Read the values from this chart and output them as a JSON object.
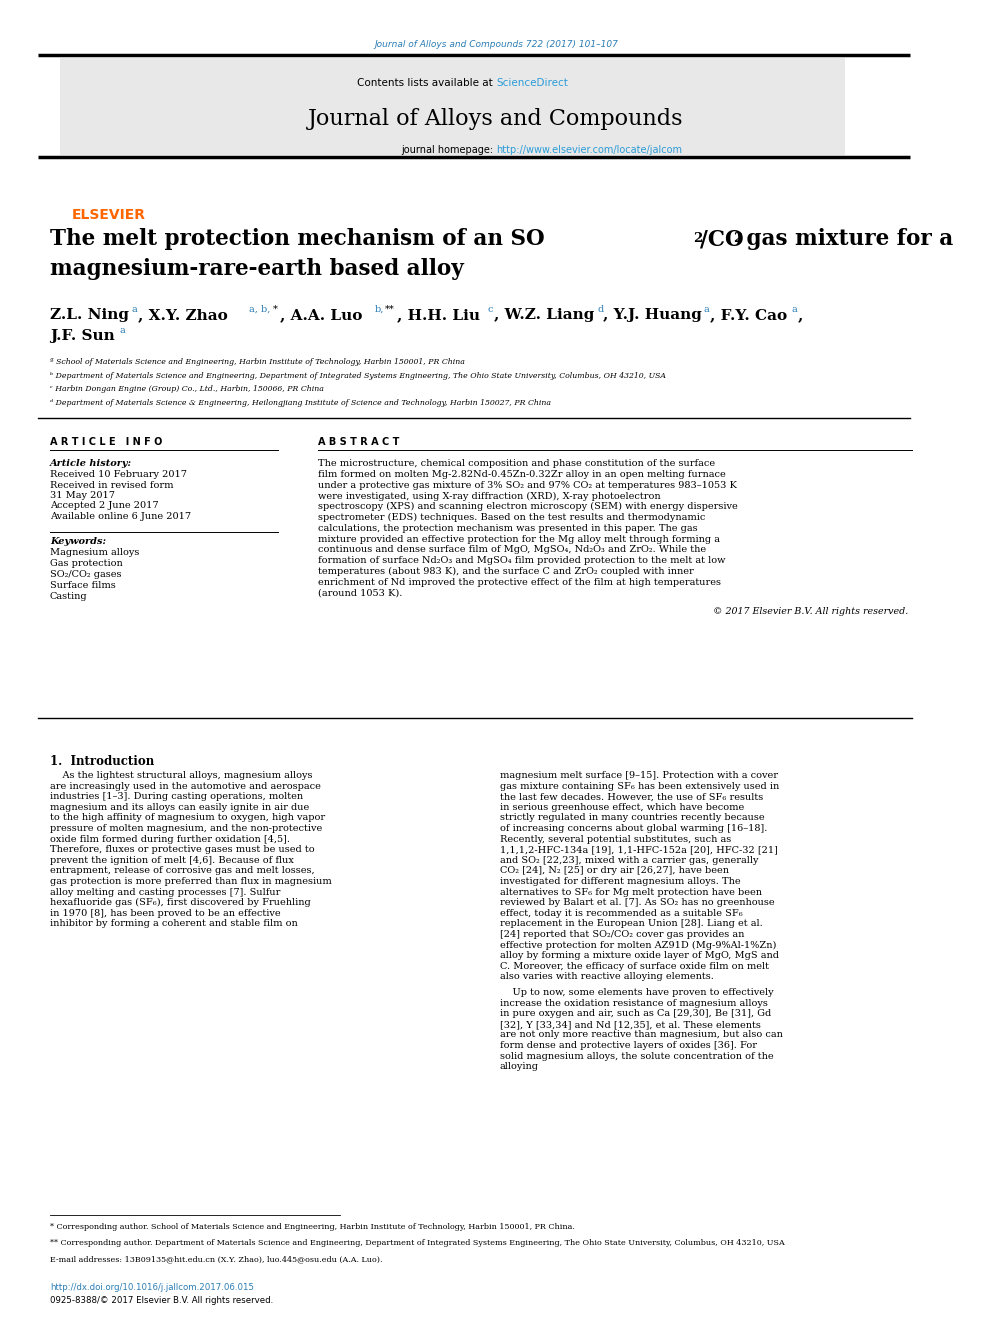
{
  "page_width": 9.92,
  "page_height": 13.23,
  "bg_color": "#ffffff",
  "journal_ref_color": "#2b7db5",
  "journal_ref": "Journal of Alloys and Compounds 722 (2017) 101–107",
  "header_bg": "#e8e8e8",
  "header_contents": "Contents lists available at",
  "sciencedirect_color": "#2b9cd8",
  "sciencedirect_text": "ScienceDirect",
  "journal_name": "Journal of Alloys and Compounds",
  "homepage_label": "journal homepage:",
  "homepage_url": "http://www.elsevier.com/locate/jalcom",
  "homepage_url_color": "#2b9cd8",
  "elsevier_color": "#ff6600",
  "elsevier_text": "ELSEVIER",
  "title_line1": "The melt protection mechanism of an SO",
  "title_line2": "magnesium-rare-earth based alloy",
  "authors_line1": "Z.L. Ning ",
  "authors_line2": "J.F. Sun ",
  "affil_a": "ª School of Materials Science and Engineering, Harbin Institute of Technology, Harbin 150001, PR China",
  "affil_b": "ᵇ Department of Materials Science and Engineering, Department of Integrated Systems Engineering, The Ohio State University, Columbus, OH 43210, USA",
  "affil_c": "ᶜ Harbin Dongan Engine (Group) Co., Ltd., Harbin, 150066, PR China",
  "affil_d": "ᵈ Department of Materials Science & Engineering, Heilongjiang Institute of Science and Technology, Harbin 150027, PR China",
  "article_info_title": "A R T I C L E   I N F O",
  "abstract_title": "A B S T R A C T",
  "article_history_label": "Article history:",
  "received": "Received 10 February 2017",
  "received_revised": "Received in revised form",
  "revised_date": "31 May 2017",
  "accepted": "Accepted 2 June 2017",
  "available": "Available online 6 June 2017",
  "keywords_label": "Keywords:",
  "kw1": "Magnesium alloys",
  "kw2": "Gas protection",
  "kw3": "SO₂/CO₂ gases",
  "kw4": "Surface films",
  "kw5": "Casting",
  "abstract_text": "The microstructure, chemical composition and phase constitution of the surface film formed on molten Mg-2.82Nd-0.45Zn-0.32Zr alloy in an open melting furnace under a protective gas mixture of 3% SO₂ and 97% CO₂ at temperatures 983–1053 K were investigated, using X-ray diffraction (XRD), X-ray photoelectron spectroscopy (XPS) and scanning electron microscopy (SEM) with energy dispersive spectrometer (EDS) techniques. Based on the test results and thermodynamic calculations, the protection mechanism was presented in this paper. The gas mixture provided an effective protection for the Mg alloy melt through forming a continuous and dense surface film of MgO, MgSO₄, Nd₂O₃ and ZrO₂. While the formation of surface Nd₂O₃ and MgSO₄ film provided protection to the melt at low temperatures (about 983 K), and the surface C and ZrO₂ coupled with inner enrichment of Nd improved the protective effect of the film at high temperatures (around 1053 K).",
  "copyright": "© 2017 Elsevier B.V. All rights reserved.",
  "intro_title": "1.  Introduction",
  "intro_col1": "As the lightest structural alloys, magnesium alloys are increasingly used in the automotive and aerospace industries [1–3]. During casting operations, molten magnesium and its alloys can easily ignite in air due to the high affinity of magnesium to oxygen, high vapor pressure of molten magnesium, and the non-protective oxide film formed during further oxidation [4,5]. Therefore, fluxes or protective gases must be used to prevent the ignition of melt [4,6]. Because of flux entrapment, release of corrosive gas and melt losses, gas protection is more preferred than flux in magnesium alloy melting and casting processes [7]. Sulfur hexafluoride gas (SF₆), first discovered by Fruehling in 1970 [8], has been proved to be an effective inhibitor by forming a coherent and stable film on",
  "intro_col2": "magnesium melt surface [9–15]. Protection with a cover gas mixture containing SF₆ has been extensively used in the last few decades. However, the use of SF₆ results in serious greenhouse effect, which have become strictly regulated in many countries recently because of increasing concerns about global warming [16–18]. Recently, several potential substitutes, such as 1,1,1,2-HFC-134a [19], 1,1-HFC-152a [20], HFC-32 [21] and SO₂ [22,23], mixed with a carrier gas, generally CO₂ [24], N₂ [25] or dry air [26,27], have been investigated for different magnesium alloys. The alternatives to SF₆ for Mg melt protection have been reviewed by Balart et al. [7]. As SO₂ has no greenhouse effect, today it is recommended as a suitable SF₆ replacement in the European Union [28]. Liang et al. [24] reported that SO₂/CO₂ cover gas provides an effective protection for molten AZ91D (Mg-9%Al-1%Zn) alloy by forming a mixture oxide layer of MgO, MgS and C. Moreover, the efficacy of surface oxide film on melt also varies with reactive alloying elements.",
  "intro_col2_cont": "Up to now, some elements have proven to effectively increase the oxidation resistance of magnesium alloys in pure oxygen and air, such as Ca [29,30], Be [31], Gd [32], Y [33,34] and Nd [12,35], et al. These elements are not only more reactive than magnesium, but also can form dense and protective layers of oxides [36]. For solid magnesium alloys, the solute concentration of the alloying",
  "footnote1": "* Corresponding author. School of Materials Science and Engineering, Harbin Institute of Technology, Harbin 150001, PR China.",
  "footnote2": "** Corresponding author. Department of Materials Science and Engineering, Department of Integrated Systems Engineering, The Ohio State University, Columbus, OH 43210, USA",
  "email_line": "E-mail addresses: 13B09135@hit.edu.cn (X.Y. Zhao), luo.445@osu.edu (A.A. Luo).",
  "doi": "http://dx.doi.org/10.1016/j.jallcom.2017.06.015",
  "issn": "0925-8388/© 2017 Elsevier B.V. All rights reserved."
}
